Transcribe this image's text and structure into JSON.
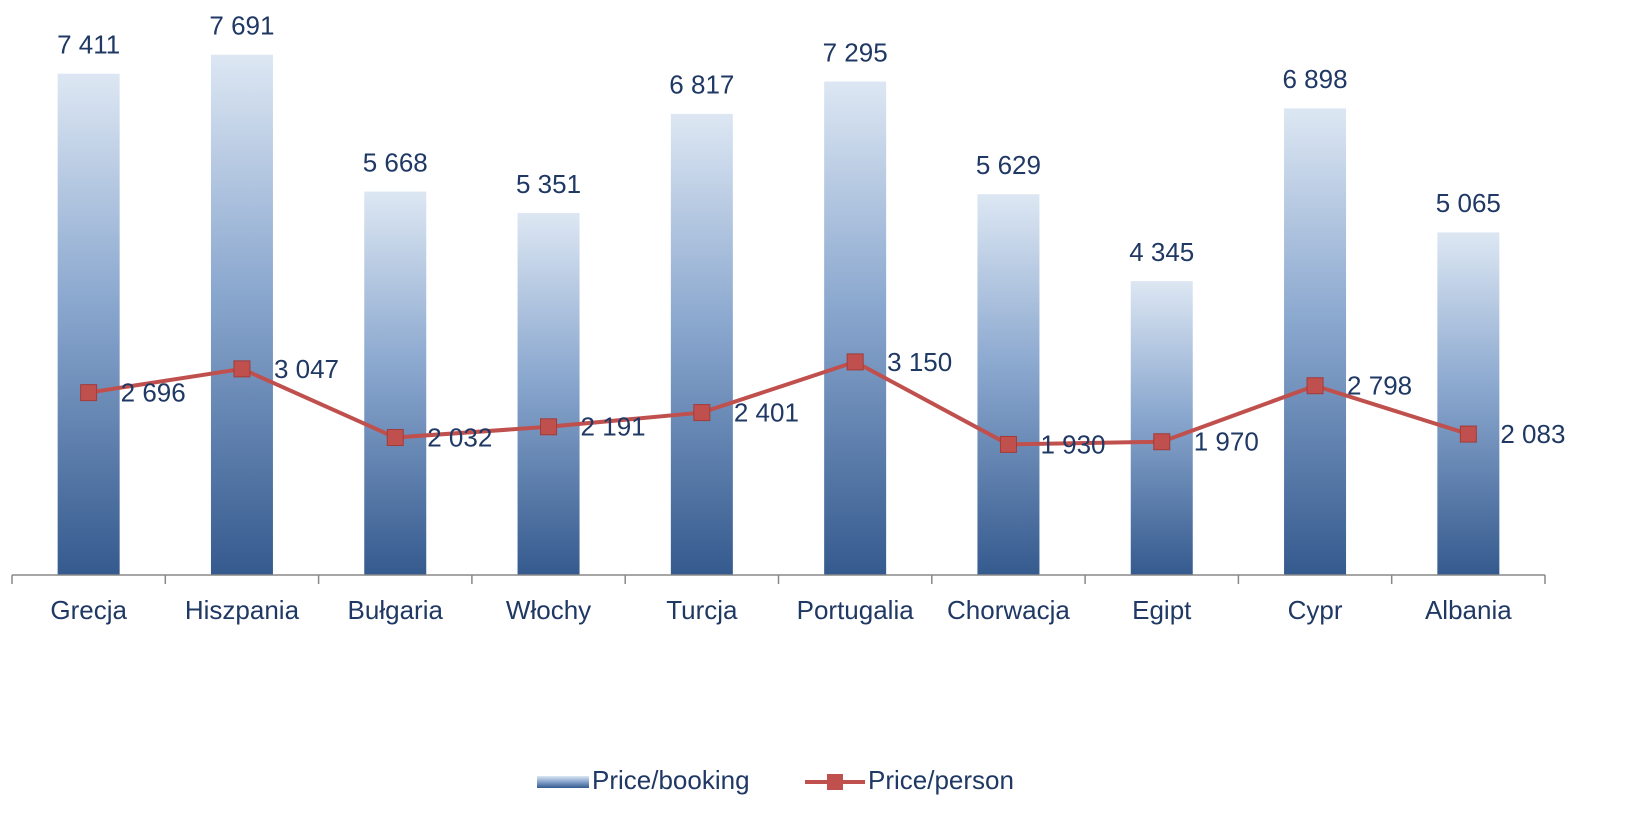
{
  "chart_data": {
    "type": "combo",
    "categories": [
      "Grecja",
      "Hiszpania",
      "Bułgaria",
      "Włochy",
      "Turcja",
      "Portugalia",
      "Chorwacja",
      "Egipt",
      "Cypr",
      "Albania"
    ],
    "series": [
      {
        "name": "Price/booking",
        "type": "bar",
        "color": "#3a5f93",
        "values": [
          7411,
          7691,
          5668,
          5351,
          6817,
          7295,
          5629,
          4345,
          6898,
          5065
        ],
        "value_labels": [
          "7 411",
          "7 691",
          "5 668",
          "5 351",
          "6 817",
          "7 295",
          "5 629",
          "4 345",
          "6 898",
          "5 065"
        ]
      },
      {
        "name": "Price/person",
        "type": "line",
        "color": "#c0504d",
        "values": [
          2696,
          3047,
          2032,
          2191,
          2401,
          3150,
          1930,
          1970,
          2798,
          2083
        ],
        "value_labels": [
          "2 696",
          "3 047",
          "2 032",
          "2 191",
          "2 401",
          "3 150",
          "1 930",
          "1 970",
          "2 798",
          "2 083"
        ]
      }
    ],
    "ylim": [
      0,
      8500
    ],
    "legend": "bottom"
  }
}
